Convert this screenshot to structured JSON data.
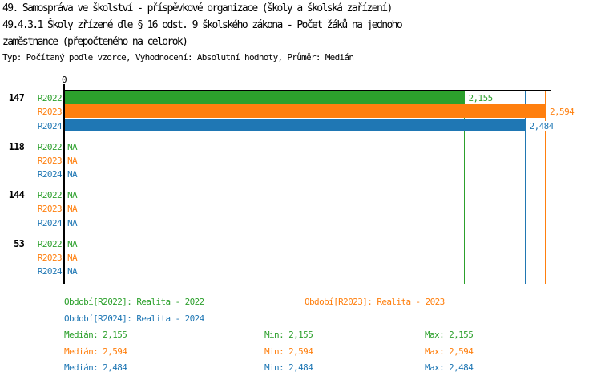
{
  "header": {
    "title_line1": "49. Samospráva ve školství - příspěvkové organizace (školy a školská zařízení)",
    "title_line2": "49.4.3.1 Školy zřízené dle § 16 odst. 9 školského zákona - Počet žáků na jednoho",
    "title_line3": "zaměstnance (přepočteného na celorok)",
    "subtitle": "Typ: Počítaný podle vzorce, Vyhodnocení: Absolutní hodnoty, Průměr: Medián"
  },
  "colors": {
    "r2022": "#2ca02c",
    "r2023": "#ff7f0e",
    "r2024": "#1f77b4",
    "axis": "#000000",
    "background": "#ffffff"
  },
  "chart_data": {
    "type": "bar",
    "orientation": "horizontal",
    "title": "Počet žáků na jednoho zaměstnance (přepočteného na celorok)",
    "x_axis": {
      "min": 0,
      "zero_tick_label": "0",
      "max_shown": 2.594,
      "grid": false
    },
    "series_names": [
      "R2022",
      "R2023",
      "R2024"
    ],
    "series_keys": [
      "r2022",
      "r2023",
      "r2024"
    ],
    "groups": [
      {
        "label": "147",
        "values": [
          2.155,
          2.594,
          2.484
        ],
        "value_labels": [
          "2,155",
          "2,594",
          "2,484"
        ]
      },
      {
        "label": "118",
        "values": [
          null,
          null,
          null
        ],
        "value_labels": [
          "NA",
          "NA",
          "NA"
        ]
      },
      {
        "label": "144",
        "values": [
          null,
          null,
          null
        ],
        "value_labels": [
          "NA",
          "NA",
          "NA"
        ]
      },
      {
        "label": "53",
        "values": [
          null,
          null,
          null
        ],
        "value_labels": [
          "NA",
          "NA",
          "NA"
        ]
      }
    ],
    "reference_lines": [
      {
        "series_key": "r2022",
        "value": 2.155
      },
      {
        "series_key": "r2024",
        "value": 2.484
      },
      {
        "series_key": "r2023",
        "value": 2.594
      }
    ],
    "na_text": "NA"
  },
  "legend": {
    "periods": [
      {
        "label": "Období[R2022]: Realita - 2022",
        "series_key": "r2022"
      },
      {
        "label": "Období[R2023]: Realita - 2023",
        "series_key": "r2023"
      },
      {
        "label": "Období[R2024]: Realita - 2024",
        "series_key": "r2024"
      }
    ],
    "stats": [
      {
        "median": "Medián: 2,155",
        "min": "Min: 2,155",
        "max": "Max: 2,155",
        "series_key": "r2022"
      },
      {
        "median": "Medián: 2,594",
        "min": "Min: 2,594",
        "max": "Max: 2,594",
        "series_key": "r2023"
      },
      {
        "median": "Medián: 2,484",
        "min": "Min: 2,484",
        "max": "Max: 2,484",
        "series_key": "r2024"
      }
    ]
  }
}
